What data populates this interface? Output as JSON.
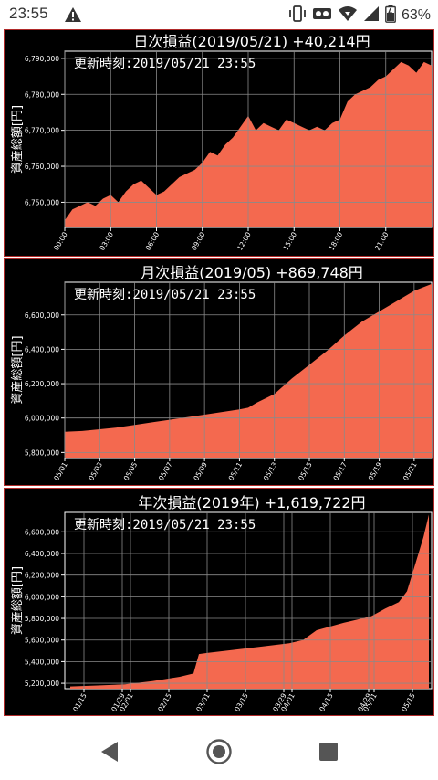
{
  "status_bar": {
    "time": "23:55",
    "battery": "63%",
    "icons": [
      "warning-icon",
      "vibrate-icon",
      "app-icon",
      "wifi-icon",
      "signal-icon",
      "battery-icon"
    ]
  },
  "charts": [
    {
      "title": "日次損益(2019/05/21) +40,214円",
      "update": "更新時刻:2019/05/21 23:55",
      "ylabel": "資産総額[円]",
      "yticks": [
        "6,790,000",
        "6,780,000",
        "6,770,000",
        "6,760,000",
        "6,750,000"
      ],
      "xticks": [
        "00:00",
        "03:00",
        "06:00",
        "09:00",
        "12:00",
        "15:00",
        "18:00",
        "21:00"
      ]
    },
    {
      "title": "月次損益(2019/05) +869,748円",
      "update": "更新時刻:2019/05/21 23:55",
      "ylabel": "資産総額[円]",
      "yticks": [
        "6,600,000",
        "6,400,000",
        "6,200,000",
        "6,000,000",
        "5,800,000"
      ],
      "xticks": [
        "05/01",
        "05/03",
        "05/05",
        "05/07",
        "05/09",
        "05/11",
        "05/13",
        "05/15",
        "05/17",
        "05/19",
        "05/21"
      ]
    },
    {
      "title": "年次損益(2019年) +1,619,722円",
      "update": "更新時刻:2019/05/21 23:55",
      "ylabel": "資産総額[円]",
      "yticks": [
        "6,600,000",
        "6,400,000",
        "6,200,000",
        "6,000,000",
        "5,800,000",
        "5,600,000",
        "5,400,000",
        "5,200,000"
      ],
      "xticks": [
        "01/15",
        "01/29",
        "02/01",
        "02/15",
        "03/01",
        "03/15",
        "03/29",
        "04/01",
        "04/15",
        "04/29",
        "05/01",
        "05/15"
      ]
    }
  ],
  "chart_data": [
    {
      "type": "area",
      "title": "日次損益(2019/05/21) +40,214円",
      "ylabel": "資産総額[円]",
      "ylim": [
        6743000,
        6792000
      ],
      "x_hours": [
        0,
        0.5,
        1,
        1.5,
        2,
        2.5,
        3,
        3.5,
        4,
        4.5,
        5,
        5.5,
        6,
        6.5,
        7,
        7.5,
        8,
        8.5,
        9,
        9.5,
        10,
        10.5,
        11,
        11.5,
        12,
        12.5,
        13,
        13.5,
        14,
        14.5,
        15,
        15.5,
        16,
        16.5,
        17,
        17.5,
        18,
        18.5,
        19,
        19.5,
        20,
        20.5,
        21,
        21.5,
        22,
        22.5,
        23,
        23.5,
        24
      ],
      "values": [
        6745000,
        6748000,
        6749000,
        6750000,
        6749000,
        6751000,
        6752000,
        6750000,
        6753000,
        6755000,
        6756000,
        6754000,
        6752000,
        6753000,
        6755000,
        6757000,
        6758000,
        6759000,
        6761000,
        6764000,
        6763000,
        6766000,
        6768000,
        6771000,
        6774000,
        6770000,
        6772000,
        6771000,
        6770000,
        6773000,
        6772000,
        6771000,
        6770000,
        6771000,
        6770000,
        6772000,
        6773000,
        6778000,
        6780000,
        6781000,
        6782000,
        6784000,
        6785000,
        6787000,
        6789000,
        6788000,
        6786000,
        6789000,
        6788000
      ],
      "xlim": [
        0,
        24
      ],
      "color": "#f4694f",
      "grid": true
    },
    {
      "type": "area",
      "title": "月次損益(2019/05) +869,748円",
      "ylabel": "資産総額[円]",
      "ylim": [
        5770000,
        6790000
      ],
      "x_days": [
        1,
        2,
        3,
        4,
        5,
        6,
        7,
        8,
        9,
        10,
        11,
        11.5,
        12,
        13,
        14,
        15,
        16,
        17,
        18,
        19,
        20,
        21,
        22
      ],
      "values": [
        5920000,
        5925000,
        5935000,
        5945000,
        5960000,
        5975000,
        5990000,
        6005000,
        6020000,
        6035000,
        6050000,
        6060000,
        6090000,
        6140000,
        6230000,
        6310000,
        6390000,
        6480000,
        6560000,
        6620000,
        6680000,
        6740000,
        6780000
      ],
      "xlim": [
        1,
        22
      ],
      "color": "#f4694f",
      "grid": true
    },
    {
      "type": "area",
      "title": "年次損益(2019年) +1,619,722円",
      "ylabel": "資産総額[円]",
      "ylim": [
        5150000,
        6780000
      ],
      "x_days": [
        10,
        20,
        30,
        40,
        50,
        55,
        57,
        60,
        70,
        80,
        90,
        95,
        100,
        110,
        120,
        125,
        130,
        133,
        136,
        139,
        141
      ],
      "values": [
        5170000,
        5180000,
        5190000,
        5220000,
        5260000,
        5290000,
        5470000,
        5480000,
        5510000,
        5540000,
        5570000,
        5600000,
        5690000,
        5760000,
        5820000,
        5890000,
        5950000,
        6050000,
        6300000,
        6550000,
        6760000
      ],
      "xlim": [
        8,
        142
      ],
      "color": "#f4694f",
      "grid": true
    }
  ]
}
